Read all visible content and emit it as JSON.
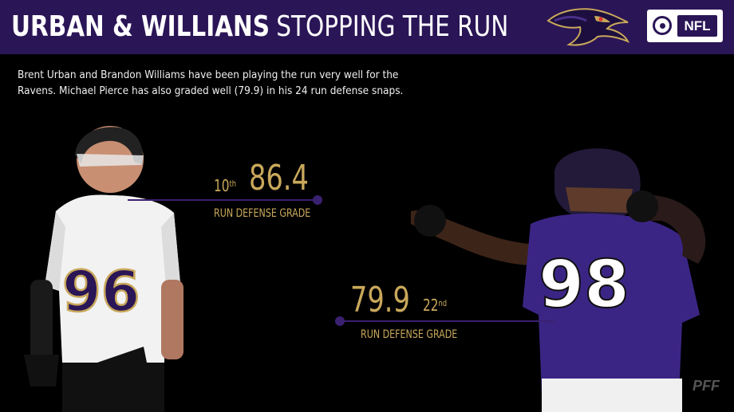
{
  "header": {
    "title_bold": "URBAN & WILLIANS",
    "title_light": "STOPPING THE RUN",
    "broadcast_logo": "NFL"
  },
  "description": "Brent Urban and Brandon Williams have been playing the run very well for the Ravens. Michael Pierce has also graded well (79.9) in his 24 run defense snaps.",
  "players": [
    {
      "jersey": "96",
      "grade": "86.4",
      "rank_num": "10",
      "rank_suffix": "th",
      "label": "RUN DEFENSE GRADE"
    },
    {
      "jersey": "98",
      "grade": "79.9",
      "rank_num": "22",
      "rank_suffix": "nd",
      "label": "RUN DEFENSE GRADE"
    }
  ],
  "watermark": "PFF",
  "colors": {
    "header_bg": "#2a1556",
    "accent_gold": "#c9a85b",
    "line_purple": "#3a2070"
  }
}
